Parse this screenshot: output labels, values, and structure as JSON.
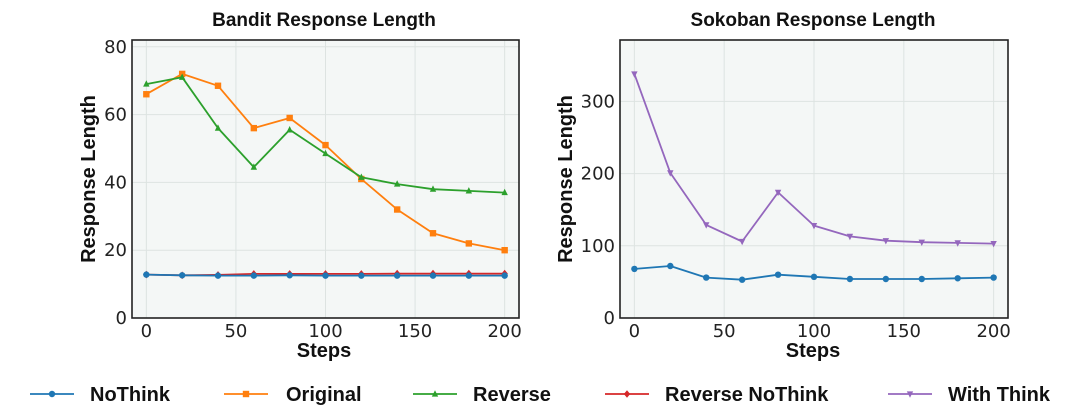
{
  "chart_data": [
    {
      "type": "line",
      "title": "Bandit Response Length",
      "xlabel": "Steps",
      "ylabel": "Response Length",
      "xlim": [
        -8,
        208
      ],
      "ylim": [
        0,
        82
      ],
      "xticks": [
        0,
        50,
        100,
        150,
        200
      ],
      "xtick_labels": [
        "0",
        "50",
        "100",
        "150",
        "200"
      ],
      "yticks": [
        0,
        20,
        40,
        60,
        80
      ],
      "ytick_labels": [
        "0",
        "20",
        "40",
        "60",
        "80"
      ],
      "grid": true,
      "x": [
        0,
        20,
        40,
        60,
        80,
        100,
        120,
        140,
        160,
        180,
        200
      ],
      "series": [
        {
          "name": "Original",
          "color": "#ff7f0e",
          "marker": "square",
          "values": [
            66,
            72,
            68.5,
            56,
            59,
            51,
            41,
            32,
            25,
            22,
            20
          ]
        },
        {
          "name": "Reverse",
          "color": "#2ca02c",
          "marker": "triangle-up",
          "values": [
            69,
            71,
            56,
            44.5,
            55.5,
            48.5,
            41.5,
            39.5,
            38,
            37.5,
            37
          ]
        },
        {
          "name": "Reverse NoThink",
          "color": "#d62728",
          "marker": "diamond",
          "values": [
            12.8,
            12.6,
            12.7,
            13,
            13,
            13,
            13,
            13.1,
            13.1,
            13.1,
            13.1
          ]
        },
        {
          "name": "NoThink",
          "color": "#1f77b4",
          "marker": "circle",
          "values": [
            12.8,
            12.6,
            12.5,
            12.5,
            12.6,
            12.5,
            12.5,
            12.5,
            12.5,
            12.5,
            12.5
          ]
        }
      ]
    },
    {
      "type": "line",
      "title": "Sokoban Response Length",
      "xlabel": "Steps",
      "ylabel": "Response Length",
      "xlim": [
        -8,
        208
      ],
      "ylim": [
        0,
        385
      ],
      "xticks": [
        0,
        50,
        100,
        150,
        200
      ],
      "xtick_labels": [
        "0",
        "50",
        "100",
        "150",
        "200"
      ],
      "yticks": [
        0,
        100,
        200,
        300
      ],
      "ytick_labels": [
        "0",
        "100",
        "200",
        "300"
      ],
      "grid": true,
      "x": [
        0,
        20,
        40,
        60,
        80,
        100,
        120,
        140,
        160,
        180,
        200
      ],
      "series": [
        {
          "name": "With Think",
          "color": "#9467bd",
          "marker": "triangle-down",
          "values": [
            338,
            201,
            129,
            106,
            174,
            128,
            113,
            107,
            105,
            104,
            103
          ]
        },
        {
          "name": "NoThink",
          "color": "#1f77b4",
          "marker": "circle",
          "values": [
            68,
            72,
            56,
            53,
            60,
            57,
            54,
            54,
            54,
            55,
            56
          ]
        }
      ]
    }
  ],
  "legend": {
    "position": "bottom",
    "entries": [
      {
        "label": "NoThink",
        "color": "#1f77b4",
        "marker": "circle"
      },
      {
        "label": "Original",
        "color": "#ff7f0e",
        "marker": "square"
      },
      {
        "label": "Reverse",
        "color": "#2ca02c",
        "marker": "triangle-up"
      },
      {
        "label": "Reverse NoThink",
        "color": "#d62728",
        "marker": "diamond"
      },
      {
        "label": "With Think",
        "color": "#9467bd",
        "marker": "triangle-down"
      }
    ]
  }
}
